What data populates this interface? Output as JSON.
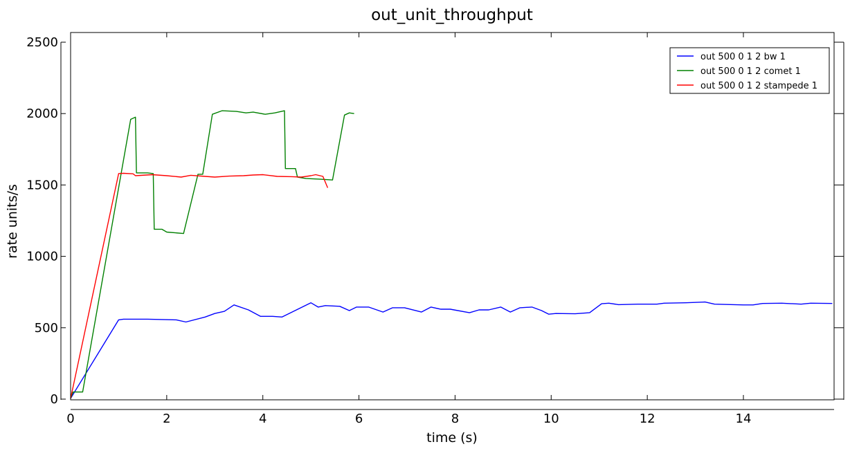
{
  "chart_data": {
    "type": "line",
    "title": "out_unit_throughput",
    "xlabel": "time (s)",
    "ylabel": "rate units/s",
    "xlim": [
      0,
      15.85
    ],
    "ylim": [
      0,
      2500
    ],
    "xticks": [
      0,
      2,
      4,
      6,
      8,
      10,
      12,
      14
    ],
    "yticks": [
      0,
      500,
      1000,
      1500,
      2000,
      2500
    ],
    "grid": false,
    "legend_position": "top-right",
    "series": [
      {
        "name": "out 500 0 1 2 bw 1",
        "color": "#0000ff",
        "x": [
          0,
          1.0,
          1.1,
          1.6,
          2.2,
          2.4,
          2.8,
          3.0,
          3.2,
          3.4,
          3.7,
          3.95,
          4.2,
          4.4,
          4.7,
          5.0,
          5.15,
          5.3,
          5.6,
          5.8,
          5.95,
          6.2,
          6.5,
          6.7,
          6.95,
          7.3,
          7.5,
          7.7,
          7.9,
          8.3,
          8.5,
          8.7,
          8.95,
          9.15,
          9.35,
          9.6,
          9.8,
          9.95,
          10.1,
          10.5,
          10.8,
          11.05,
          11.2,
          11.4,
          11.8,
          12.2,
          12.35,
          12.8,
          13.2,
          13.4,
          14.0,
          14.2,
          14.4,
          14.8,
          15.2,
          15.4,
          15.85
        ],
        "y": [
          5,
          555,
          560,
          560,
          555,
          540,
          575,
          600,
          615,
          660,
          625,
          580,
          580,
          575,
          625,
          675,
          645,
          655,
          650,
          620,
          645,
          645,
          610,
          640,
          640,
          610,
          645,
          630,
          630,
          605,
          625,
          625,
          645,
          610,
          640,
          645,
          620,
          595,
          600,
          598,
          605,
          668,
          672,
          662,
          665,
          665,
          672,
          675,
          680,
          665,
          660,
          660,
          670,
          672,
          665,
          672,
          670
        ]
      },
      {
        "name": "out 500 0 1 2 comet 1",
        "color": "#008000",
        "x": [
          0,
          0.05,
          0.25,
          1.25,
          1.35,
          1.37,
          1.6,
          1.72,
          1.74,
          1.9,
          2.0,
          2.35,
          2.65,
          2.75,
          2.95,
          3.15,
          3.45,
          3.65,
          3.8,
          4.05,
          4.25,
          4.45,
          4.47,
          4.68,
          4.72,
          4.9,
          5.2,
          5.45,
          5.7,
          5.8,
          5.9
        ],
        "y": [
          5,
          50,
          50,
          1960,
          1975,
          1585,
          1585,
          1580,
          1190,
          1190,
          1170,
          1160,
          1575,
          1575,
          1995,
          2020,
          2015,
          2005,
          2010,
          1995,
          2005,
          2020,
          1615,
          1615,
          1555,
          1545,
          1540,
          1535,
          1990,
          2005,
          2000
        ]
      },
      {
        "name": "out 500 0 1 2 stampede 1",
        "color": "#ff0000",
        "x": [
          0,
          1.0,
          1.1,
          1.3,
          1.35,
          1.7,
          2.0,
          2.3,
          2.5,
          2.8,
          3.0,
          3.3,
          3.6,
          3.8,
          4.0,
          4.3,
          4.6,
          4.8,
          5.0,
          5.1,
          5.25,
          5.35
        ],
        "y": [
          5,
          1580,
          1582,
          1578,
          1565,
          1572,
          1565,
          1555,
          1568,
          1560,
          1555,
          1562,
          1565,
          1570,
          1572,
          1560,
          1558,
          1555,
          1565,
          1572,
          1560,
          1480
        ]
      }
    ]
  }
}
